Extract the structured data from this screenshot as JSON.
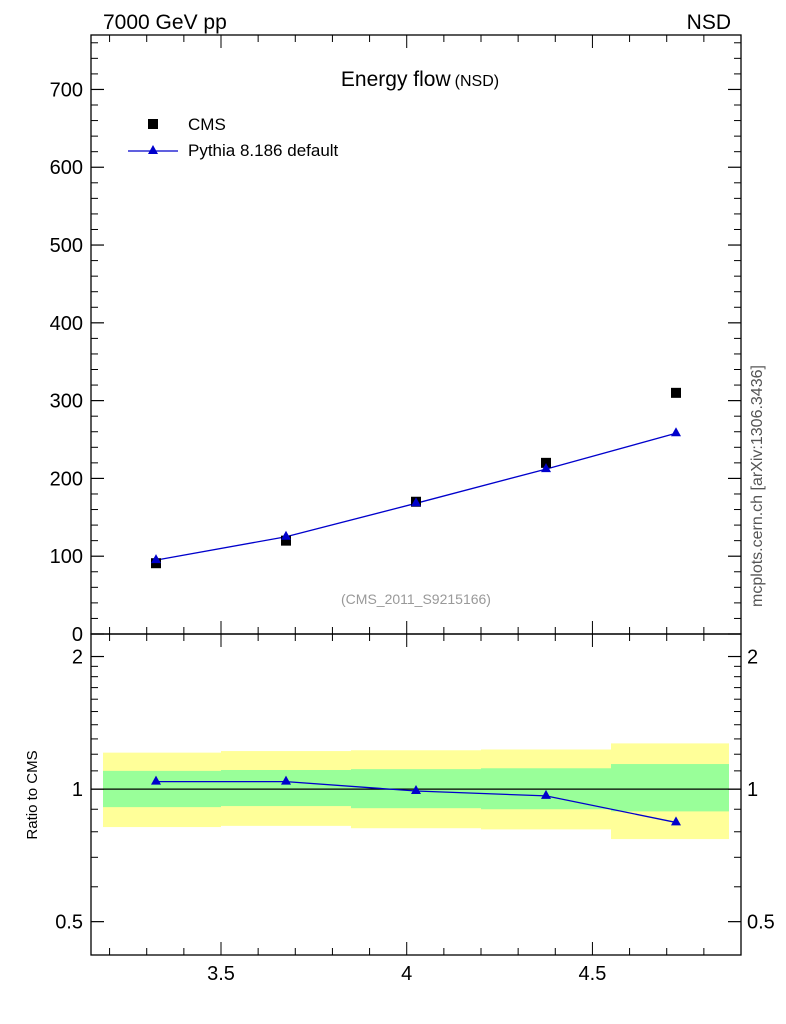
{
  "header": {
    "left": "7000 GeV pp",
    "right": "NSD"
  },
  "side_label": "mcplots.cern.ch [arXiv:1306.3436]",
  "analysis_label": "(CMS_2011_S9215166)",
  "chart_data": [
    {
      "type": "scatter",
      "title": "Energy flow",
      "title_suffix": "(NSD)",
      "xlabel": "",
      "ylabel": "",
      "xlim": [
        3.15,
        4.9
      ],
      "ylim": [
        0,
        770
      ],
      "x_ticks": [
        3.5,
        4,
        4.5
      ],
      "x_tick_labels": [
        "3.5",
        "4",
        "4.5"
      ],
      "y_ticks": [
        0,
        100,
        200,
        300,
        400,
        500,
        600,
        700
      ],
      "y_tick_labels": [
        "0",
        "100",
        "200",
        "300",
        "400",
        "500",
        "600",
        "700"
      ],
      "legend_position": "top-left",
      "series": [
        {
          "name": "CMS",
          "marker": "square",
          "color": "#000000",
          "x": [
            3.325,
            3.675,
            4.025,
            4.375,
            4.725
          ],
          "y": [
            91,
            120,
            170,
            220,
            310
          ]
        },
        {
          "name": "Pythia 8.186 default",
          "marker": "triangle",
          "line": true,
          "color": "#0000cc",
          "x": [
            3.325,
            3.675,
            4.025,
            4.375,
            4.725
          ],
          "y": [
            95,
            125,
            168,
            212,
            258
          ]
        }
      ]
    },
    {
      "type": "line",
      "title": "",
      "ylabel": "Ratio to CMS",
      "xlim": [
        3.15,
        4.9
      ],
      "y_scale": "log",
      "ylim": [
        0.42,
        2.25
      ],
      "y_ticks": [
        0.5,
        1,
        2
      ],
      "y_tick_labels": [
        "0.5",
        "1",
        "2"
      ],
      "x_ticks": [
        3.5,
        4,
        4.5
      ],
      "x_tick_labels": [
        "3.5",
        "4",
        "4.5"
      ],
      "reference_line": 1,
      "bands": {
        "bins": [
          [
            3.15,
            3.5
          ],
          [
            3.5,
            3.85
          ],
          [
            3.85,
            4.2
          ],
          [
            4.2,
            4.55
          ],
          [
            4.55,
            4.9
          ]
        ],
        "inner": [
          [
            0.91,
            1.1
          ],
          [
            0.915,
            1.105
          ],
          [
            0.905,
            1.11
          ],
          [
            0.9,
            1.115
          ],
          [
            0.89,
            1.14
          ]
        ],
        "outer": [
          [
            0.82,
            1.21
          ],
          [
            0.825,
            1.22
          ],
          [
            0.815,
            1.225
          ],
          [
            0.81,
            1.23
          ],
          [
            0.77,
            1.27
          ]
        ],
        "inner_color": "#99ff99",
        "outer_color": "#ffff99"
      },
      "series": [
        {
          "name": "Pythia 8.186 default",
          "color": "#0000cc",
          "x": [
            3.325,
            3.675,
            4.025,
            4.375,
            4.725
          ],
          "y": [
            1.04,
            1.04,
            0.99,
            0.965,
            0.84
          ]
        }
      ]
    }
  ]
}
